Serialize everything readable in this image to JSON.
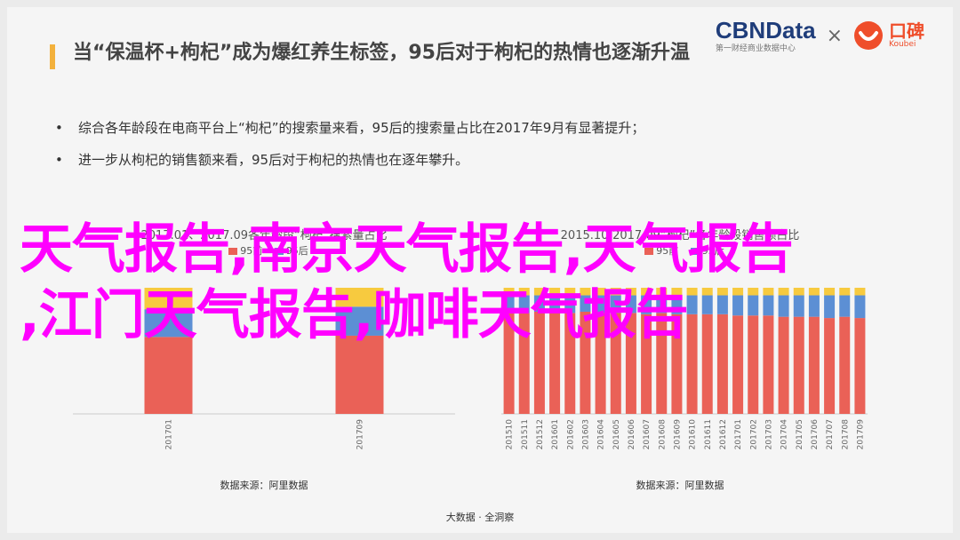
{
  "header": {
    "title": "当“保温杯+枸杞”成为爆红养生标签，95后对于枸杞的热情也逐渐升温",
    "logo_cbn": "CBNData",
    "logo_cbn_sub": "第一财经商业数据中心",
    "times": "×",
    "logo_koubei": "口碑",
    "logo_koubei_sub": "Koubei"
  },
  "bullets": [
    "综合各年龄段在电商平台上“枸杞”的搜索量来看，95后的搜索量占比在2017年9月有显著提升；",
    "进一步从枸杞的销售额来看，95后对于枸杞的热情也在逐年攀升。"
  ],
  "colors": {
    "red": "#ea6157",
    "blue": "#5c8fd4",
    "yellow": "#f7ca3f",
    "overlay": "#ff00ff",
    "accent": "#f3b13c"
  },
  "chart_data": [
    {
      "type": "bar",
      "title": "2017.01、2017.09各年龄段“枸杞”搜索量占比",
      "categories": [
        "201701",
        "201709"
      ],
      "series": [
        {
          "name": "95前",
          "values": [
            61,
            62
          ]
        },
        {
          "name": "95后",
          "values": [
            22,
            23
          ]
        },
        {
          "name": "",
          "values": [
            17,
            15
          ]
        }
      ],
      "ylim": [
        0,
        100
      ],
      "source": "数据来源：阿里数据"
    },
    {
      "type": "bar",
      "title": "2015.10-2017.09“枸杞”各年龄段销售额占比",
      "categories": [
        "201510",
        "201511",
        "201512",
        "201601",
        "201602",
        "201603",
        "201604",
        "201605",
        "201606",
        "201607",
        "201608",
        "201609",
        "201610",
        "201611",
        "201612",
        "201701",
        "201702",
        "201703",
        "201704",
        "201705",
        "201706",
        "201707",
        "201708",
        "201709"
      ],
      "series": [
        {
          "name": "95前",
          "values": [
            81,
            80,
            81,
            80,
            80,
            81,
            80,
            80,
            80,
            79,
            80,
            79,
            79,
            79,
            79,
            78,
            78,
            78,
            77,
            77,
            77,
            76,
            77,
            76
          ]
        },
        {
          "name": "95后",
          "values": [
            13,
            14,
            13,
            14,
            14,
            13,
            14,
            14,
            14,
            15,
            14,
            15,
            15,
            15,
            15,
            16,
            16,
            16,
            17,
            17,
            17,
            18,
            17,
            18
          ]
        },
        {
          "name": "",
          "values": [
            6,
            6,
            6,
            6,
            6,
            6,
            6,
            6,
            6,
            6,
            6,
            6,
            6,
            6,
            6,
            6,
            6,
            6,
            6,
            6,
            6,
            6,
            6,
            6
          ]
        }
      ],
      "ylim": [
        0,
        100
      ],
      "source": "数据来源：阿里数据"
    }
  ],
  "overlay": {
    "line1": "天气报告,南京天气报告,天气报告",
    "line2": ",江门天气报告,咖啡天气报告"
  },
  "footer": "大数据 · 全洞察"
}
